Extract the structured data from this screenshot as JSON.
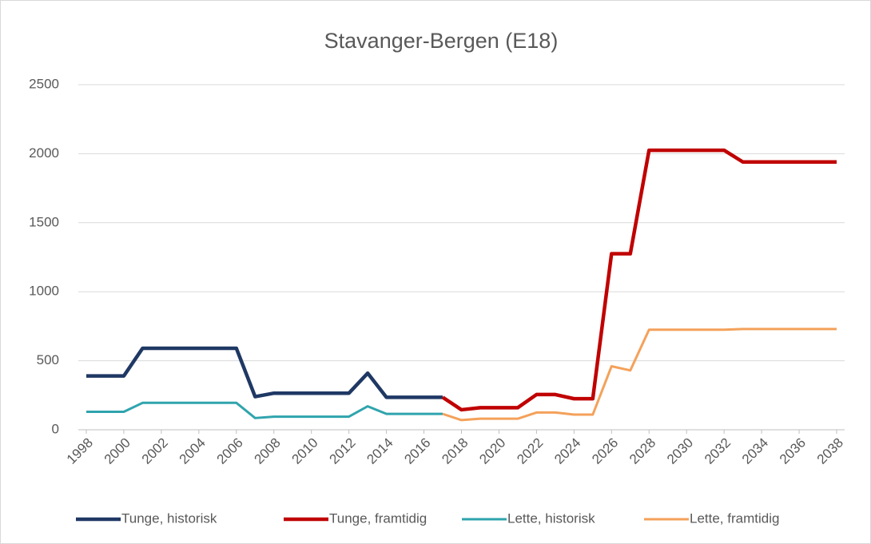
{
  "chart_data": {
    "type": "line",
    "title": "Stavanger-Bergen (E18)",
    "x": [
      1998,
      1999,
      2000,
      2001,
      2002,
      2003,
      2004,
      2005,
      2006,
      2007,
      2008,
      2009,
      2010,
      2011,
      2012,
      2013,
      2014,
      2015,
      2016,
      2017,
      2018,
      2019,
      2020,
      2021,
      2022,
      2023,
      2024,
      2025,
      2026,
      2027,
      2028,
      2029,
      2030,
      2031,
      2032,
      2033,
      2034,
      2035,
      2036,
      2037,
      2038
    ],
    "series": [
      {
        "name": "Tunge, historisk",
        "color": "#1f3864",
        "width": 4.5,
        "values": [
          390,
          390,
          390,
          590,
          590,
          590,
          590,
          590,
          590,
          240,
          265,
          265,
          265,
          265,
          265,
          410,
          235,
          235,
          235,
          235,
          null,
          null,
          null,
          null,
          null,
          null,
          null,
          null,
          null,
          null,
          null,
          null,
          null,
          null,
          null,
          null,
          null,
          null,
          null,
          null,
          null
        ]
      },
      {
        "name": "Tunge, framtidig",
        "color": "#c00000",
        "width": 4.5,
        "values": [
          null,
          null,
          null,
          null,
          null,
          null,
          null,
          null,
          null,
          null,
          null,
          null,
          null,
          null,
          null,
          null,
          null,
          null,
          null,
          235,
          145,
          160,
          160,
          160,
          255,
          255,
          225,
          225,
          1275,
          1275,
          2025,
          2025,
          2025,
          2025,
          2025,
          1940,
          1940,
          1940,
          1940,
          1940,
          1940
        ]
      },
      {
        "name": "Lette, historisk",
        "color": "#2fa4ad",
        "width": 3,
        "values": [
          130,
          130,
          130,
          195,
          195,
          195,
          195,
          195,
          195,
          85,
          95,
          95,
          95,
          95,
          95,
          170,
          115,
          115,
          115,
          115,
          null,
          null,
          null,
          null,
          null,
          null,
          null,
          null,
          null,
          null,
          null,
          null,
          null,
          null,
          null,
          null,
          null,
          null,
          null,
          null,
          null
        ]
      },
      {
        "name": "Lette, framtidig",
        "color": "#f4a15a",
        "width": 3,
        "values": [
          null,
          null,
          null,
          null,
          null,
          null,
          null,
          null,
          null,
          null,
          null,
          null,
          null,
          null,
          null,
          null,
          null,
          null,
          null,
          115,
          70,
          80,
          80,
          80,
          125,
          125,
          110,
          110,
          460,
          430,
          725,
          725,
          725,
          725,
          725,
          730,
          730,
          730,
          730,
          730,
          730
        ]
      }
    ],
    "xlim": [
      1998,
      2038
    ],
    "xticks": [
      1998,
      2000,
      2002,
      2004,
      2006,
      2008,
      2010,
      2012,
      2014,
      2016,
      2018,
      2020,
      2022,
      2024,
      2026,
      2028,
      2030,
      2032,
      2034,
      2036,
      2038
    ],
    "ylim": [
      0,
      2500
    ],
    "yticks": [
      0,
      500,
      1000,
      1500,
      2000,
      2500
    ],
    "grid": true,
    "legend": "bottom"
  }
}
